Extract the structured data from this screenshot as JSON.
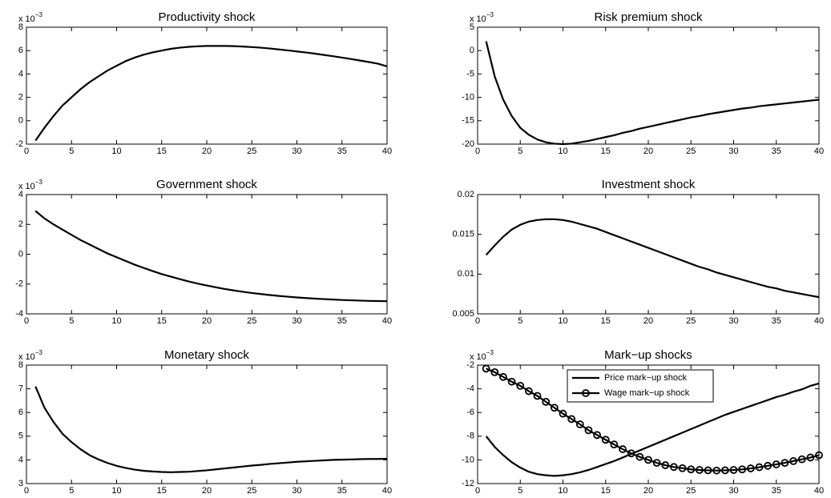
{
  "chart_data": [
    {
      "type": "line",
      "title": "Productivity shock",
      "y_multiplier": {
        "base": "x 10",
        "exponent": "−3"
      },
      "x": [
        1,
        2,
        3,
        4,
        5,
        6,
        7,
        8,
        9,
        10,
        11,
        12,
        13,
        14,
        15,
        16,
        17,
        18,
        19,
        20,
        21,
        22,
        23,
        24,
        25,
        26,
        27,
        28,
        29,
        30,
        31,
        32,
        33,
        34,
        35,
        36,
        37,
        38,
        39,
        40
      ],
      "values": [
        -1.7,
        -0.6,
        0.4,
        1.3,
        2.0,
        2.7,
        3.3,
        3.8,
        4.3,
        4.7,
        5.1,
        5.4,
        5.65,
        5.85,
        6.0,
        6.15,
        6.25,
        6.32,
        6.37,
        6.4,
        6.4,
        6.4,
        6.38,
        6.35,
        6.3,
        6.25,
        6.18,
        6.1,
        6.02,
        5.93,
        5.84,
        5.74,
        5.63,
        5.52,
        5.4,
        5.28,
        5.15,
        5.02,
        4.88,
        4.65
      ],
      "color": "#000000",
      "xlim": [
        0,
        40
      ],
      "xticks": [
        0,
        5,
        10,
        15,
        20,
        25,
        30,
        35,
        40
      ],
      "ylim": [
        -2,
        8
      ],
      "yticks": [
        -2,
        0,
        2,
        4,
        6,
        8
      ]
    },
    {
      "type": "line",
      "title": "Risk premium shock",
      "y_multiplier": {
        "base": "x 10",
        "exponent": "−3"
      },
      "x": [
        1,
        2,
        3,
        4,
        5,
        6,
        7,
        8,
        9,
        10,
        11,
        12,
        13,
        14,
        15,
        16,
        17,
        18,
        19,
        20,
        21,
        22,
        23,
        24,
        25,
        26,
        27,
        28,
        29,
        30,
        31,
        32,
        33,
        34,
        35,
        36,
        37,
        38,
        39,
        40
      ],
      "values": [
        2,
        -5.5,
        -10.5,
        -14,
        -16.5,
        -18,
        -19,
        -19.6,
        -19.9,
        -20,
        -19.9,
        -19.6,
        -19.3,
        -18.9,
        -18.5,
        -18.1,
        -17.6,
        -17.2,
        -16.7,
        -16.3,
        -15.9,
        -15.5,
        -15.1,
        -14.7,
        -14.3,
        -14.0,
        -13.6,
        -13.3,
        -13.0,
        -12.7,
        -12.4,
        -12.2,
        -11.9,
        -11.7,
        -11.5,
        -11.3,
        -11.1,
        -10.9,
        -10.7,
        -10.5
      ],
      "color": "#000000",
      "xlim": [
        0,
        40
      ],
      "xticks": [
        0,
        5,
        10,
        15,
        20,
        25,
        30,
        35,
        40
      ],
      "ylim": [
        -20,
        5
      ],
      "yticks": [
        -20,
        -15,
        -10,
        -5,
        0,
        5
      ]
    },
    {
      "type": "line",
      "title": "Government shock",
      "y_multiplier": {
        "base": "x 10",
        "exponent": "−3"
      },
      "x": [
        1,
        2,
        3,
        4,
        5,
        6,
        7,
        8,
        9,
        10,
        11,
        12,
        13,
        14,
        15,
        16,
        17,
        18,
        19,
        20,
        21,
        22,
        23,
        24,
        25,
        26,
        27,
        28,
        29,
        30,
        31,
        32,
        33,
        34,
        35,
        36,
        37,
        38,
        39,
        40
      ],
      "values": [
        2.9,
        2.4,
        2.0,
        1.65,
        1.3,
        0.95,
        0.65,
        0.35,
        0.05,
        -0.2,
        -0.45,
        -0.7,
        -0.92,
        -1.13,
        -1.33,
        -1.5,
        -1.67,
        -1.83,
        -1.97,
        -2.1,
        -2.22,
        -2.33,
        -2.43,
        -2.52,
        -2.6,
        -2.67,
        -2.74,
        -2.8,
        -2.85,
        -2.9,
        -2.94,
        -2.98,
        -3.01,
        -3.04,
        -3.07,
        -3.09,
        -3.11,
        -3.13,
        -3.14,
        -3.15
      ],
      "color": "#000000",
      "xlim": [
        0,
        40
      ],
      "xticks": [
        0,
        5,
        10,
        15,
        20,
        25,
        30,
        35,
        40
      ],
      "ylim": [
        -4,
        4
      ],
      "yticks": [
        -4,
        -2,
        0,
        2,
        4
      ]
    },
    {
      "type": "line",
      "title": "Investment shock",
      "x": [
        1,
        2,
        3,
        4,
        5,
        6,
        7,
        8,
        9,
        10,
        11,
        12,
        13,
        14,
        15,
        16,
        17,
        18,
        19,
        20,
        21,
        22,
        23,
        24,
        25,
        26,
        27,
        28,
        29,
        30,
        31,
        32,
        33,
        34,
        35,
        36,
        37,
        38,
        39,
        40
      ],
      "values": [
        0.0124,
        0.0136,
        0.0147,
        0.0156,
        0.0162,
        0.0166,
        0.0168,
        0.0169,
        0.0169,
        0.0168,
        0.0166,
        0.0163,
        0.016,
        0.0157,
        0.0153,
        0.0149,
        0.0145,
        0.0141,
        0.0137,
        0.0133,
        0.0129,
        0.0125,
        0.0121,
        0.0117,
        0.0113,
        0.0109,
        0.0106,
        0.0102,
        0.0099,
        0.0096,
        0.0093,
        0.009,
        0.0087,
        0.0084,
        0.0082,
        0.0079,
        0.0077,
        0.0075,
        0.0073,
        0.0071
      ],
      "color": "#000000",
      "xlim": [
        0,
        40
      ],
      "xticks": [
        0,
        5,
        10,
        15,
        20,
        25,
        30,
        35,
        40
      ],
      "ylim": [
        0.005,
        0.02
      ],
      "yticks": [
        0.005,
        0.01,
        0.015,
        0.02
      ]
    },
    {
      "type": "line",
      "title": "Monetary shock",
      "y_multiplier": {
        "base": "x 10",
        "exponent": "−3"
      },
      "x": [
        1,
        2,
        3,
        4,
        5,
        6,
        7,
        8,
        9,
        10,
        11,
        12,
        13,
        14,
        15,
        16,
        17,
        18,
        19,
        20,
        21,
        22,
        23,
        24,
        25,
        26,
        27,
        28,
        29,
        30,
        31,
        32,
        33,
        34,
        35,
        36,
        37,
        38,
        39,
        40
      ],
      "values": [
        7.1,
        6.2,
        5.6,
        5.1,
        4.75,
        4.45,
        4.2,
        4.02,
        3.87,
        3.75,
        3.66,
        3.59,
        3.54,
        3.51,
        3.49,
        3.48,
        3.49,
        3.5,
        3.53,
        3.56,
        3.6,
        3.64,
        3.68,
        3.72,
        3.76,
        3.79,
        3.83,
        3.86,
        3.89,
        3.92,
        3.94,
        3.96,
        3.98,
        4.0,
        4.01,
        4.02,
        4.03,
        4.04,
        4.04,
        4.05
      ],
      "color": "#000000",
      "xlim": [
        0,
        40
      ],
      "xticks": [
        0,
        5,
        10,
        15,
        20,
        25,
        30,
        35,
        40
      ],
      "ylim": [
        3,
        8
      ],
      "yticks": [
        3,
        4,
        5,
        6,
        7,
        8
      ]
    },
    {
      "type": "line",
      "title": "Mark−up shocks",
      "y_multiplier": {
        "base": "x 10",
        "exponent": "−3"
      },
      "x": [
        1,
        2,
        3,
        4,
        5,
        6,
        7,
        8,
        9,
        10,
        11,
        12,
        13,
        14,
        15,
        16,
        17,
        18,
        19,
        20,
        21,
        22,
        23,
        24,
        25,
        26,
        27,
        28,
        29,
        30,
        31,
        32,
        33,
        34,
        35,
        36,
        37,
        38,
        39,
        40
      ],
      "series": [
        {
          "name": "Price mark−up shock",
          "color": "#000000",
          "values": [
            -8.0,
            -8.9,
            -9.6,
            -10.2,
            -10.65,
            -11.0,
            -11.2,
            -11.3,
            -11.35,
            -11.3,
            -11.2,
            -11.05,
            -10.85,
            -10.6,
            -10.35,
            -10.1,
            -9.8,
            -9.5,
            -9.2,
            -8.9,
            -8.6,
            -8.3,
            -8.0,
            -7.7,
            -7.4,
            -7.1,
            -6.8,
            -6.5,
            -6.2,
            -5.95,
            -5.7,
            -5.45,
            -5.2,
            -4.95,
            -4.7,
            -4.5,
            -4.25,
            -4.05,
            -3.75,
            -3.55
          ]
        },
        {
          "name": "Wage mark−up shock",
          "color": "#000000",
          "marker": "o",
          "values": [
            -2.3,
            -2.6,
            -3.0,
            -3.4,
            -3.75,
            -4.2,
            -4.6,
            -5.1,
            -5.6,
            -6.1,
            -6.55,
            -7.0,
            -7.5,
            -7.9,
            -8.3,
            -8.7,
            -9.1,
            -9.45,
            -9.75,
            -10.0,
            -10.25,
            -10.45,
            -10.6,
            -10.7,
            -10.8,
            -10.85,
            -10.88,
            -10.9,
            -10.88,
            -10.85,
            -10.8,
            -10.72,
            -10.62,
            -10.5,
            -10.38,
            -10.25,
            -10.1,
            -9.95,
            -9.8,
            -9.6
          ]
        }
      ],
      "legend": "upper center",
      "xlim": [
        0,
        40
      ],
      "xticks": [
        0,
        5,
        10,
        15,
        20,
        25,
        30,
        35,
        40
      ],
      "ylim": [
        -12,
        -2
      ],
      "yticks": [
        -12,
        -10,
        -8,
        -6,
        -4,
        -2
      ]
    }
  ]
}
